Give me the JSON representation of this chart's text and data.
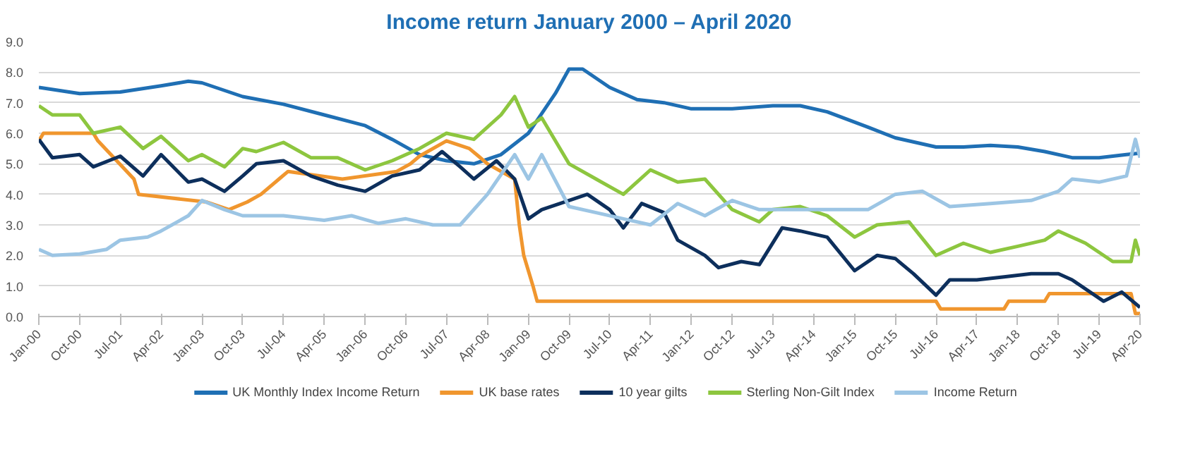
{
  "chart_data": {
    "type": "line",
    "title": "Income return January 2000 – April 2020",
    "xlim": [
      "2000-01",
      "2020-04"
    ],
    "ylim": [
      0,
      9
    ],
    "yticks": [
      {
        "value": 0,
        "label": "0.0"
      },
      {
        "value": 1,
        "label": "1.0"
      },
      {
        "value": 2,
        "label": "2.0"
      },
      {
        "value": 3,
        "label": "3.0"
      },
      {
        "value": 4,
        "label": "4.0"
      },
      {
        "value": 5,
        "label": "5.0"
      },
      {
        "value": 6,
        "label": "6.0"
      },
      {
        "value": 7,
        "label": "7.0"
      },
      {
        "value": 8,
        "label": "8.0"
      },
      {
        "value": 9,
        "label": "9.0"
      }
    ],
    "xticks": [
      {
        "value": "2000-01",
        "label": "Jan-00"
      },
      {
        "value": "2000-10",
        "label": "Oct-00"
      },
      {
        "value": "2001-07",
        "label": "Jul-01"
      },
      {
        "value": "2002-04",
        "label": "Apr-02"
      },
      {
        "value": "2003-01",
        "label": "Jan-03"
      },
      {
        "value": "2003-10",
        "label": "Oct-03"
      },
      {
        "value": "2004-07",
        "label": "Jul-04"
      },
      {
        "value": "2005-04",
        "label": "Apr-05"
      },
      {
        "value": "2006-01",
        "label": "Jan-06"
      },
      {
        "value": "2006-10",
        "label": "Oct-06"
      },
      {
        "value": "2007-07",
        "label": "Jul-07"
      },
      {
        "value": "2008-04",
        "label": "Apr-08"
      },
      {
        "value": "2009-01",
        "label": "Jan-09"
      },
      {
        "value": "2009-10",
        "label": "Oct-09"
      },
      {
        "value": "2010-07",
        "label": "Jul-10"
      },
      {
        "value": "2011-04",
        "label": "Apr-11"
      },
      {
        "value": "2012-01",
        "label": "Jan-12"
      },
      {
        "value": "2012-10",
        "label": "Oct-12"
      },
      {
        "value": "2013-07",
        "label": "Jul-13"
      },
      {
        "value": "2014-04",
        "label": "Apr-14"
      },
      {
        "value": "2015-01",
        "label": "Jan-15"
      },
      {
        "value": "2015-10",
        "label": "Oct-15"
      },
      {
        "value": "2016-07",
        "label": "Jul-16"
      },
      {
        "value": "2017-04",
        "label": "Apr-17"
      },
      {
        "value": "2018-01",
        "label": "Jan-18"
      },
      {
        "value": "2018-10",
        "label": "Oct-18"
      },
      {
        "value": "2019-07",
        "label": "Jul-19"
      },
      {
        "value": "2020-04",
        "label": "Apr-20"
      }
    ],
    "grid": "y",
    "legend": "bottom",
    "marker": "none",
    "line_style": "solid",
    "series": [
      {
        "name": "UK Monthly Index Income Return",
        "color": "#1f6fb4",
        "x": [
          "2000-01",
          "2000-10",
          "2001-07",
          "2002-04",
          "2002-10",
          "2003-01",
          "2003-10",
          "2004-07",
          "2005-04",
          "2006-01",
          "2006-07",
          "2007-01",
          "2007-07",
          "2008-01",
          "2008-07",
          "2009-01",
          "2009-07",
          "2009-10",
          "2010-01",
          "2010-07",
          "2011-01",
          "2011-07",
          "2012-01",
          "2012-10",
          "2013-07",
          "2014-01",
          "2014-07",
          "2015-04",
          "2015-10",
          "2016-07",
          "2017-01",
          "2017-07",
          "2018-01",
          "2018-07",
          "2019-01",
          "2019-07",
          "2020-01",
          "2020-04"
        ],
        "values": [
          7.5,
          7.3,
          7.35,
          7.55,
          7.7,
          7.65,
          7.2,
          6.95,
          6.6,
          6.25,
          5.8,
          5.3,
          5.1,
          5.0,
          5.3,
          6.0,
          7.3,
          8.1,
          8.1,
          7.5,
          7.1,
          7.0,
          6.8,
          6.8,
          6.9,
          6.9,
          6.7,
          6.2,
          5.85,
          5.55,
          5.55,
          5.6,
          5.55,
          5.4,
          5.2,
          5.2,
          5.3,
          5.35
        ]
      },
      {
        "name": "UK base rates",
        "color": "#f0962e",
        "x": [
          "2000-01",
          "2000-02",
          "2001-01",
          "2001-02",
          "2001-10",
          "2001-11",
          "2003-02",
          "2003-07",
          "2003-11",
          "2004-02",
          "2004-06",
          "2004-08",
          "2005-08",
          "2006-08",
          "2006-11",
          "2007-01",
          "2007-07",
          "2007-12",
          "2008-02",
          "2008-04",
          "2008-10",
          "2008-11",
          "2008-12",
          "2009-02",
          "2009-03",
          "2016-07",
          "2016-08",
          "2017-10",
          "2017-11",
          "2018-07",
          "2018-08",
          "2020-02",
          "2020-03",
          "2020-04"
        ],
        "values": [
          5.75,
          6.0,
          6.0,
          5.75,
          4.5,
          4.0,
          3.75,
          3.5,
          3.75,
          4.0,
          4.5,
          4.75,
          4.5,
          4.75,
          5.0,
          5.25,
          5.75,
          5.5,
          5.25,
          5.0,
          4.5,
          3.0,
          2.0,
          1.0,
          0.5,
          0.5,
          0.25,
          0.25,
          0.5,
          0.5,
          0.75,
          0.75,
          0.1,
          0.1
        ]
      },
      {
        "name": "10 year gilts",
        "color": "#0d2f5c",
        "x": [
          "2000-01",
          "2000-04",
          "2000-10",
          "2001-01",
          "2001-07",
          "2001-12",
          "2002-04",
          "2002-10",
          "2003-01",
          "2003-06",
          "2003-10",
          "2004-01",
          "2004-07",
          "2005-01",
          "2005-07",
          "2006-01",
          "2006-07",
          "2007-01",
          "2007-06",
          "2007-10",
          "2008-01",
          "2008-06",
          "2008-10",
          "2009-01",
          "2009-04",
          "2009-10",
          "2010-02",
          "2010-07",
          "2010-10",
          "2011-02",
          "2011-07",
          "2011-10",
          "2012-04",
          "2012-07",
          "2012-12",
          "2013-04",
          "2013-09",
          "2014-01",
          "2014-07",
          "2015-01",
          "2015-06",
          "2015-10",
          "2016-02",
          "2016-07",
          "2016-10",
          "2017-04",
          "2017-10",
          "2018-04",
          "2018-10",
          "2019-01",
          "2019-08",
          "2019-12",
          "2020-04"
        ],
        "values": [
          5.8,
          5.2,
          5.3,
          4.9,
          5.25,
          4.6,
          5.3,
          4.4,
          4.5,
          4.1,
          4.6,
          5.0,
          5.1,
          4.6,
          4.3,
          4.1,
          4.6,
          4.8,
          5.4,
          4.9,
          4.5,
          5.1,
          4.5,
          3.2,
          3.5,
          3.8,
          4.0,
          3.5,
          2.9,
          3.7,
          3.4,
          2.5,
          2.0,
          1.6,
          1.8,
          1.7,
          2.9,
          2.8,
          2.6,
          1.5,
          2.0,
          1.9,
          1.4,
          0.7,
          1.2,
          1.2,
          1.3,
          1.4,
          1.4,
          1.2,
          0.5,
          0.8,
          0.3
        ]
      },
      {
        "name": "Sterling Non-Gilt Index",
        "color": "#8dc63f",
        "x": [
          "2000-01",
          "2000-04",
          "2000-10",
          "2001-01",
          "2001-07",
          "2001-12",
          "2002-04",
          "2002-10",
          "2003-01",
          "2003-06",
          "2003-10",
          "2004-01",
          "2004-07",
          "2005-01",
          "2005-07",
          "2006-01",
          "2006-07",
          "2007-01",
          "2007-07",
          "2008-01",
          "2008-07",
          "2008-10",
          "2009-01",
          "2009-04",
          "2009-10",
          "2010-04",
          "2010-10",
          "2011-04",
          "2011-10",
          "2012-04",
          "2012-10",
          "2013-04",
          "2013-07",
          "2014-01",
          "2014-07",
          "2015-01",
          "2015-06",
          "2016-01",
          "2016-07",
          "2017-01",
          "2017-07",
          "2018-01",
          "2018-07",
          "2018-10",
          "2019-04",
          "2019-10",
          "2020-02",
          "2020-03",
          "2020-04"
        ],
        "values": [
          6.9,
          6.6,
          6.6,
          6.0,
          6.2,
          5.5,
          5.9,
          5.1,
          5.3,
          4.9,
          5.5,
          5.4,
          5.7,
          5.2,
          5.2,
          4.8,
          5.1,
          5.5,
          6.0,
          5.8,
          6.6,
          7.2,
          6.2,
          6.5,
          5.0,
          4.5,
          4.0,
          4.8,
          4.4,
          4.5,
          3.5,
          3.1,
          3.5,
          3.6,
          3.3,
          2.6,
          3.0,
          3.1,
          2.0,
          2.4,
          2.1,
          2.3,
          2.5,
          2.8,
          2.4,
          1.8,
          1.8,
          2.5,
          2.0
        ]
      },
      {
        "name": "Income Return",
        "color": "#9cc5e4",
        "x": [
          "2000-01",
          "2000-04",
          "2000-10",
          "2001-04",
          "2001-07",
          "2002-01",
          "2002-04",
          "2002-10",
          "2003-01",
          "2003-06",
          "2003-10",
          "2004-07",
          "2005-04",
          "2005-10",
          "2006-04",
          "2006-10",
          "2007-04",
          "2007-10",
          "2008-04",
          "2008-10",
          "2009-01",
          "2009-04",
          "2009-10",
          "2010-04",
          "2010-10",
          "2011-04",
          "2011-10",
          "2012-04",
          "2012-10",
          "2013-04",
          "2013-10",
          "2014-07",
          "2015-04",
          "2015-10",
          "2016-04",
          "2016-10",
          "2017-07",
          "2018-04",
          "2018-10",
          "2019-01",
          "2019-07",
          "2020-01",
          "2020-03",
          "2020-04"
        ],
        "values": [
          2.2,
          2.0,
          2.05,
          2.2,
          2.5,
          2.6,
          2.8,
          3.3,
          3.8,
          3.5,
          3.3,
          3.3,
          3.15,
          3.3,
          3.05,
          3.2,
          3.0,
          3.0,
          4.0,
          5.3,
          4.5,
          5.3,
          3.6,
          3.4,
          3.2,
          3.0,
          3.7,
          3.3,
          3.8,
          3.5,
          3.5,
          3.5,
          3.5,
          4.0,
          4.1,
          3.6,
          3.7,
          3.8,
          4.1,
          4.5,
          4.4,
          4.6,
          5.8,
          5.2
        ]
      }
    ]
  }
}
